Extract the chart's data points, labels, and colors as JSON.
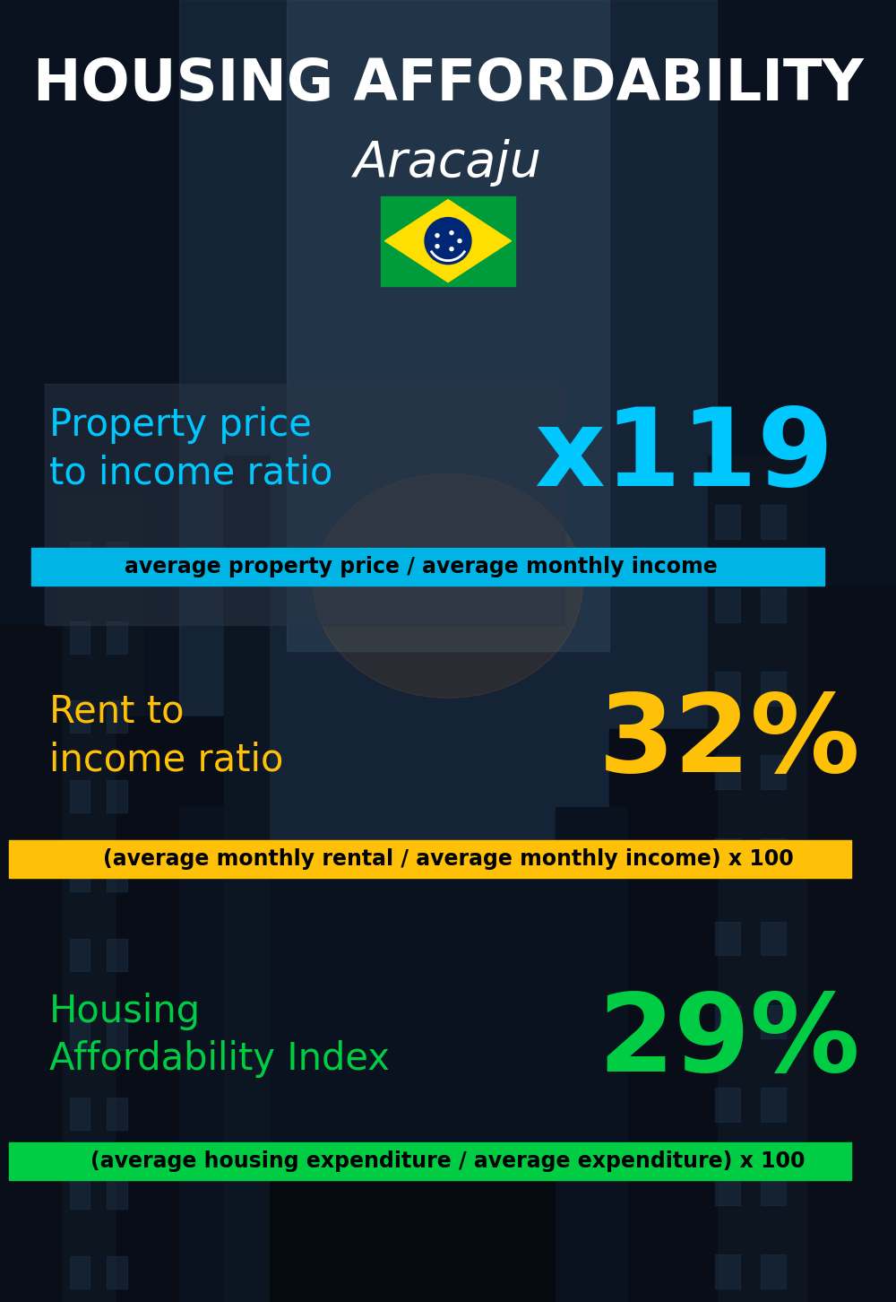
{
  "title_line1": "HOUSING AFFORDABILITY",
  "title_line2": "Aracaju",
  "bg_color": "#0a1628",
  "section1_label": "Property price\nto income ratio",
  "section1_value": "x119",
  "section1_label_color": "#00c8ff",
  "section1_value_color": "#00c8ff",
  "section1_banner_text": "average property price / average monthly income",
  "section1_banner_bg": "#00b4e6",
  "section2_label": "Rent to\nincome ratio",
  "section2_value": "32%",
  "section2_label_color": "#ffc107",
  "section2_value_color": "#ffc107",
  "section2_banner_text": "(average monthly rental / average monthly income) x 100",
  "section2_banner_bg": "#ffc107",
  "section3_label": "Housing\nAffordability Index",
  "section3_value": "29%",
  "section3_label_color": "#00cc44",
  "section3_value_color": "#00cc44",
  "section3_banner_text": "(average housing expenditure / average expenditure) x 100",
  "section3_banner_bg": "#00cc44",
  "title_color": "#ffffff",
  "subtitle_color": "#ffffff",
  "banner_text_color": "#000000",
  "fig_width": 10.0,
  "fig_height": 14.52
}
